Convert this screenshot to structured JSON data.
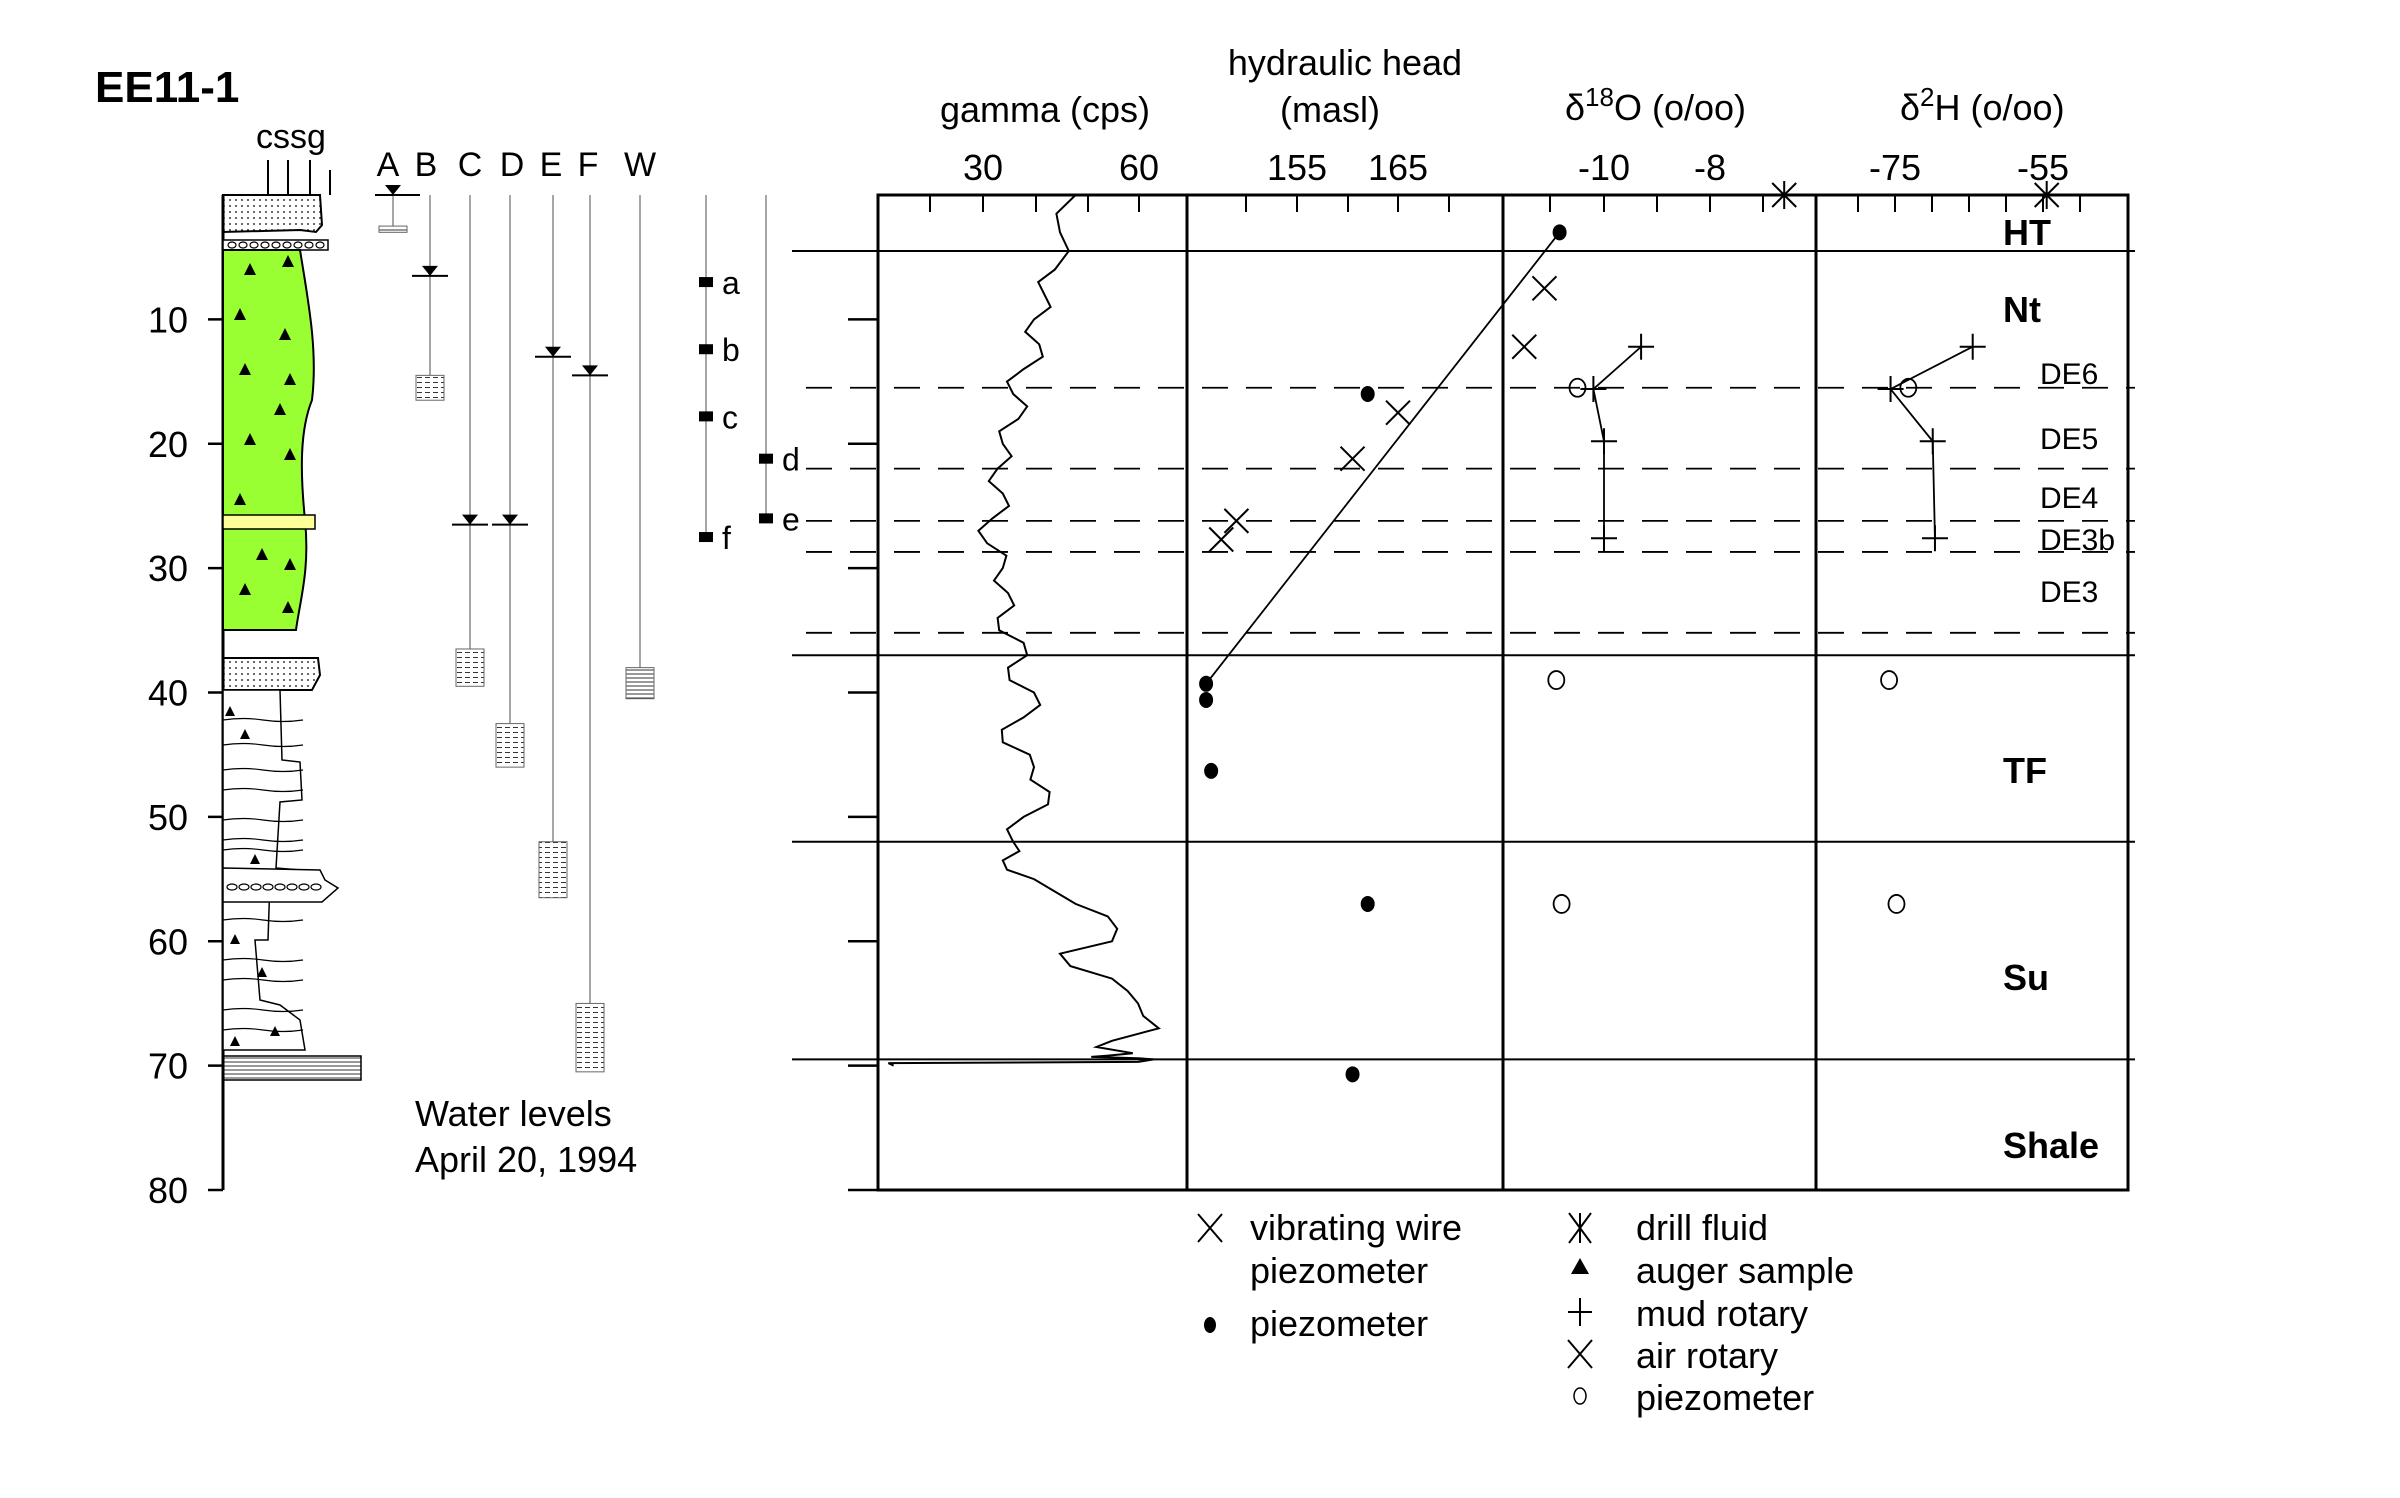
{
  "well_id": "EE11-1",
  "lith_header": "cssg",
  "piezometer_letters": [
    "A",
    "B",
    "C",
    "D",
    "E",
    "F",
    "W"
  ],
  "sample_letters": [
    "a",
    "b",
    "c",
    "d",
    "e",
    "f"
  ],
  "depth_ticks": [
    "10",
    "20",
    "30",
    "40",
    "50",
    "60",
    "70",
    "80"
  ],
  "water_levels_label": [
    "Water levels",
    "April 20, 1994"
  ],
  "panels": {
    "gamma": {
      "title": "gamma (cps)",
      "ticks": [
        "30",
        "60"
      ]
    },
    "head": {
      "title": [
        "hydraulic head",
        "(masl)"
      ],
      "ticks": [
        "155",
        "165"
      ]
    },
    "d18o": {
      "title_delta": "δ",
      "title_sup": "18",
      "title_rest": "O (o/oo)",
      "ticks": [
        "-10",
        "-8"
      ]
    },
    "d2h": {
      "title_delta": "δ",
      "title_sup": "2",
      "title_rest": "H (o/oo)",
      "ticks": [
        "-75",
        "-55"
      ]
    }
  },
  "units": [
    "HT",
    "Nt",
    "TF",
    "Su",
    "Shale"
  ],
  "subunits": [
    "DE6",
    "DE5",
    "DE4",
    "DE3b",
    "DE3"
  ],
  "legend_head": [
    "vibrating wire",
    "piezometer",
    "piezometer"
  ],
  "legend_iso": [
    "drill fluid",
    "auger sample",
    "mud rotary",
    "air rotary",
    "piezometer"
  ],
  "colors": {
    "till_fill": "#99ff33",
    "sand_lens": "#ffff99",
    "line": "#000000"
  },
  "chart_data": [
    {
      "type": "line",
      "title": "gamma (cps)",
      "xlabel": "gamma (cps)",
      "ylabel": "depth",
      "y_reversed": true,
      "xlim": [
        10,
        63
      ],
      "ylim": [
        0,
        80
      ],
      "x": [
        48,
        45,
        44,
        42,
        40,
        41,
        38,
        36,
        37,
        34,
        33,
        34,
        32,
        31,
        34,
        35,
        33,
        38,
        35,
        40,
        38,
        34,
        40,
        43,
        38,
        36,
        34,
        40,
        44,
        48,
        56,
        55,
        45,
        47,
        55,
        58,
        60,
        61,
        64,
        55,
        52,
        59,
        54,
        51,
        60,
        63,
        60,
        12,
        13
      ],
      "y": [
        0,
        3,
        6,
        8,
        10,
        12,
        14,
        16,
        18,
        20,
        22,
        24,
        26,
        28,
        30,
        32,
        34,
        36,
        38,
        40,
        42,
        44,
        46,
        48,
        50,
        52,
        53.5,
        55,
        56,
        57,
        59,
        60,
        61,
        62,
        63,
        64,
        65,
        66,
        67,
        68,
        68.5,
        69,
        69.2,
        69.3,
        69.4,
        69.5,
        69.7,
        69.8,
        70
      ]
    },
    {
      "type": "scatter",
      "title": "hydraulic head (masl)",
      "xlabel": "hydraulic head (masl)",
      "ylabel": "depth",
      "y_reversed": true,
      "xlim": [
        140,
        185
      ],
      "ylim": [
        0,
        80
      ],
      "series": [
        {
          "name": "vibrating wire piezometer",
          "x": [
            179.5,
            177.5,
            165,
            160.5,
            149,
            147.5
          ],
          "y": [
            7.5,
            12.2,
            17.5,
            21.2,
            26.2,
            27.7
          ]
        },
        {
          "name": "piezometer",
          "x": [
            181,
            162,
            146,
            146,
            146.5,
            162,
            160.5
          ],
          "y": [
            3,
            16,
            39.3,
            40.6,
            46.3,
            57,
            70.7
          ]
        }
      ],
      "trend_line": {
        "x": [
          181,
          146
        ],
        "y": [
          3,
          39.3
        ]
      }
    },
    {
      "type": "scatter",
      "title": "δ18O (o/oo)",
      "xlabel": "δ18O (o/oo)",
      "ylabel": "depth",
      "y_reversed": true,
      "ylim": [
        0,
        80
      ],
      "series": [
        {
          "name": "drill fluid",
          "x": [
            -6.6
          ],
          "y": [
            0
          ]
        },
        {
          "name": "mud rotary",
          "x": [
            -9.3,
            -10.2,
            -10.0,
            -10.0
          ],
          "y": [
            12.2,
            15.6,
            19.8,
            27.6
          ]
        },
        {
          "name": "piezometer",
          "x": [
            -10.5,
            -10.9,
            -10.8
          ],
          "y": [
            15.5,
            39.0,
            57.0
          ]
        }
      ]
    },
    {
      "type": "scatter",
      "title": "δ2H (o/oo)",
      "xlabel": "δ2H (o/oo)",
      "ylabel": "depth",
      "y_reversed": true,
      "ylim": [
        0,
        80
      ],
      "series": [
        {
          "name": "drill fluid",
          "x": [
            -54.5
          ],
          "y": [
            0
          ]
        },
        {
          "name": "mud rotary",
          "x": [
            -64.5,
            -75.6,
            -69.9,
            -69.6
          ],
          "y": [
            12.2,
            15.6,
            19.8,
            27.6
          ]
        },
        {
          "name": "piezometer",
          "x": [
            -73.2,
            -75.8,
            -74.8
          ],
          "y": [
            15.5,
            39.0,
            57.0
          ]
        }
      ]
    }
  ]
}
